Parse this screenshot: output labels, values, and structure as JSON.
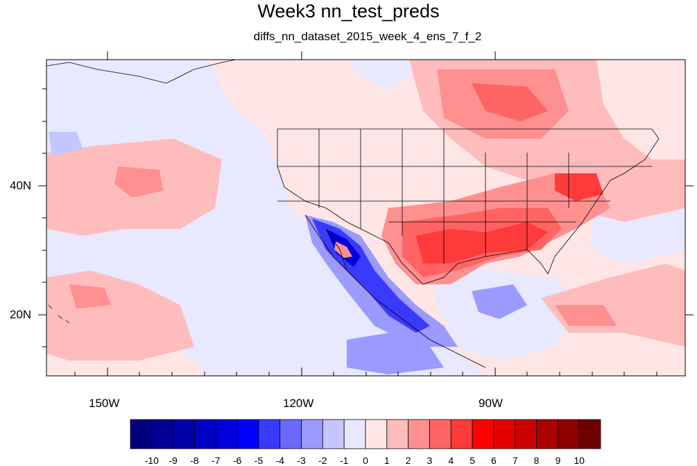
{
  "title": "Week3 nn_test_preds",
  "subtitle": "diffs_nn_dataset_2015_week_4_ens_7_f_2",
  "axes": {
    "x_ticks": [
      "150W",
      "120W",
      "90W"
    ],
    "y_ticks": [
      "40N",
      "20N"
    ]
  },
  "colorbar": {
    "labels": [
      "-10",
      "-9",
      "-8",
      "-7",
      "-6",
      "-5",
      "-4",
      "-3",
      "-2",
      "-1",
      "0",
      "1",
      "2",
      "3",
      "4",
      "5",
      "6",
      "7",
      "8",
      "9",
      "10"
    ],
    "colors": [
      "#00007f",
      "#000094",
      "#0000aa",
      "#0000c4",
      "#0000dd",
      "#0000ff",
      "#3a3aff",
      "#6a6aff",
      "#9a9aff",
      "#c6c6ff",
      "#e8e8ff",
      "#ffe6e6",
      "#ffbcbc",
      "#ff9090",
      "#ff6464",
      "#ff3a3a",
      "#ff0000",
      "#e80000",
      "#cc0000",
      "#aa0000",
      "#8c0000",
      "#6e0000"
    ]
  },
  "chart_data": {
    "type": "heatmap",
    "title": "Week3 nn_test_preds",
    "subtitle": "diffs_nn_dataset_2015_week_4_ens_7_f_2",
    "projection": "lat-lon",
    "lon_range": [
      -159.5,
      -58.5
    ],
    "lat_range": [
      10.5,
      59.5
    ],
    "x_tick_values": [
      -150,
      -120,
      -90
    ],
    "y_tick_values": [
      40,
      20
    ],
    "color_levels": [
      -10,
      -9,
      -8,
      -7,
      -6,
      -5,
      -4,
      -3,
      -2,
      -1,
      0,
      1,
      2,
      3,
      4,
      5,
      6,
      7,
      8,
      9,
      10
    ]
  }
}
